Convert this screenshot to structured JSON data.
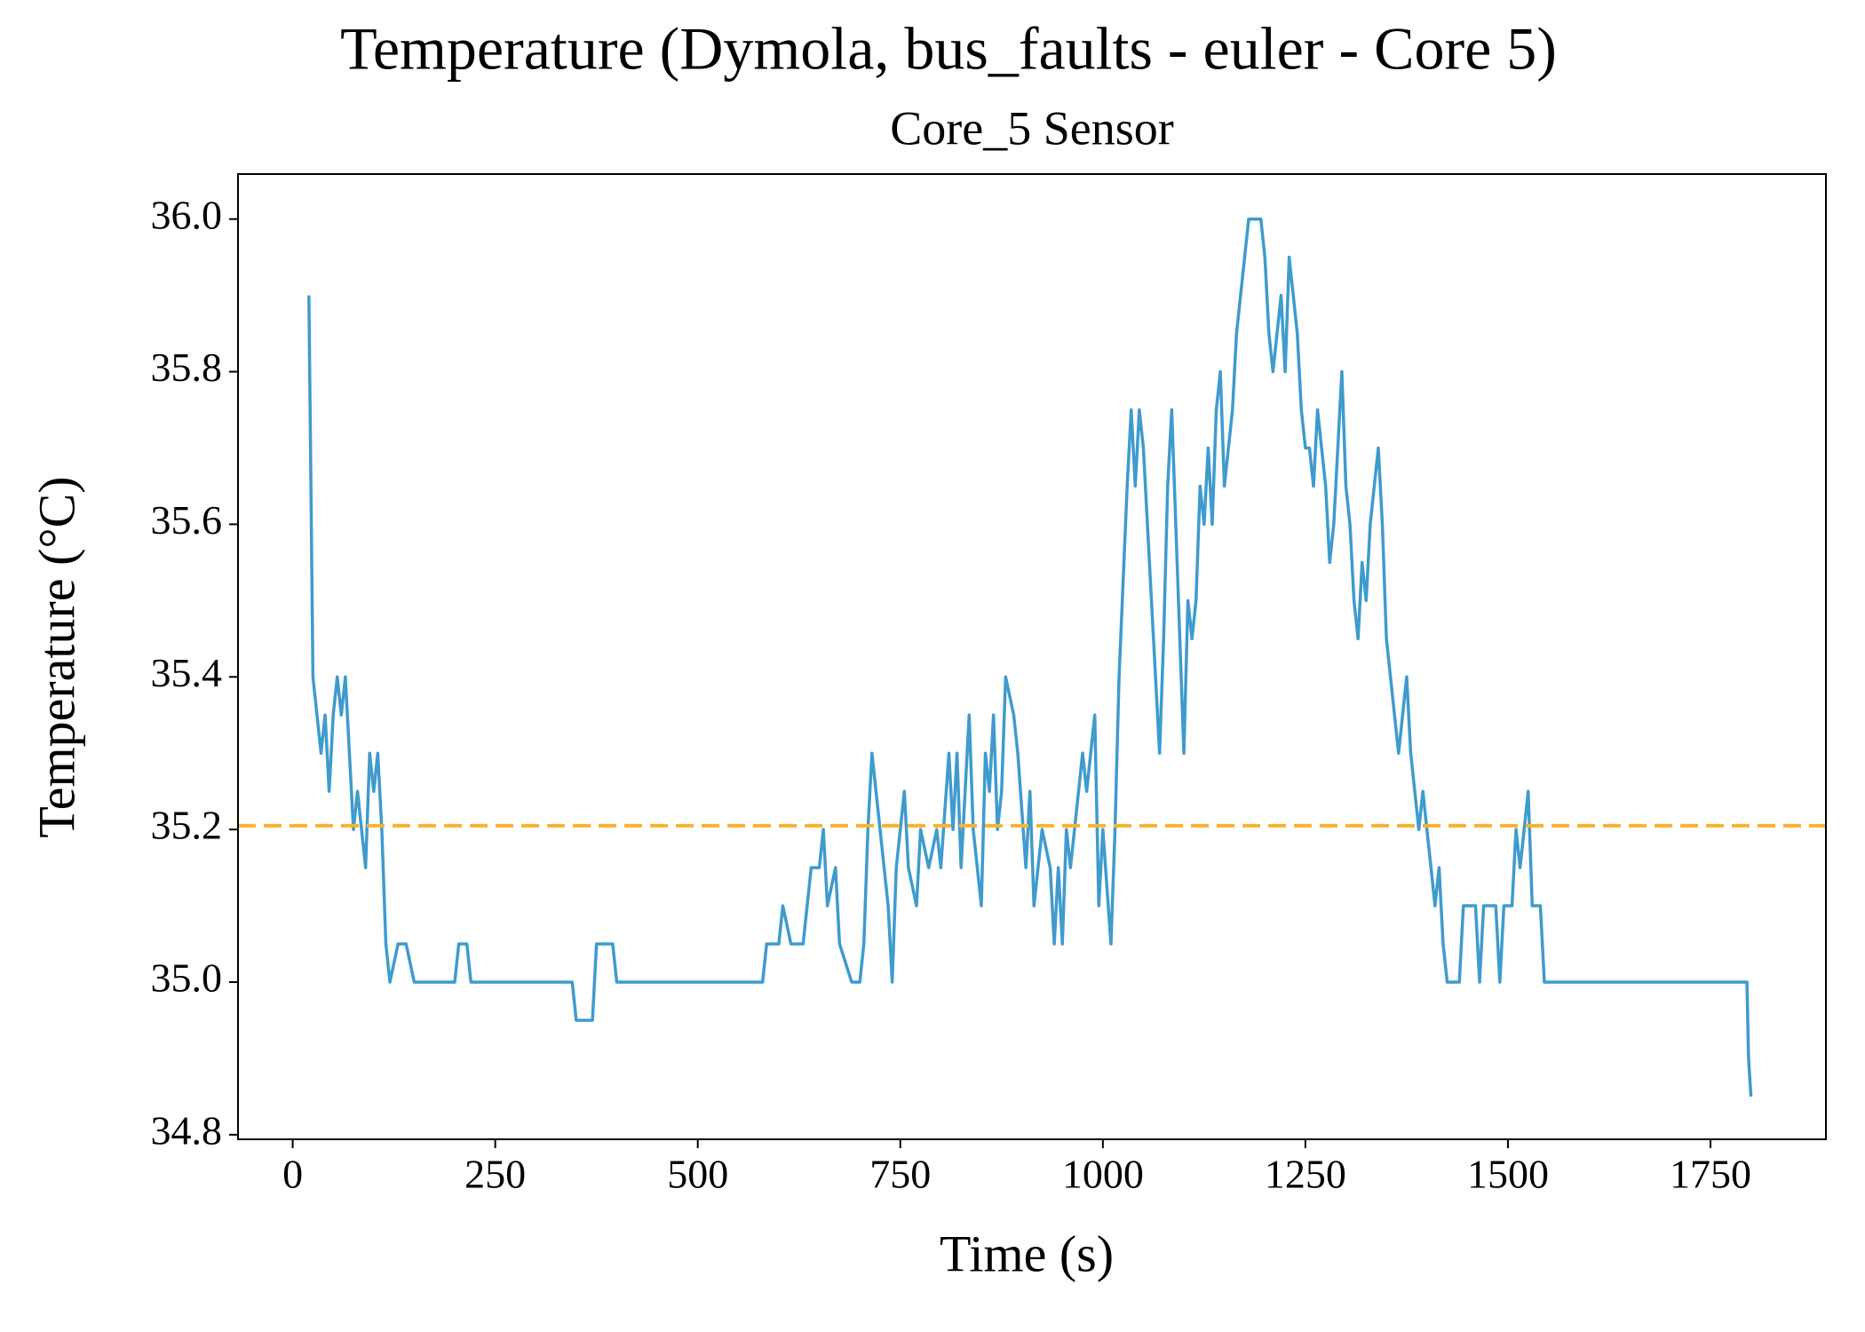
{
  "chart_data": {
    "type": "line",
    "title": "Temperature (Dymola, bus_faults - euler - Core 5)",
    "subtitle": "Core_5 Sensor",
    "x_label": "Time (s)",
    "y_label": "Temperature (°C)",
    "xlim": [
      -67.5,
      1892.5
    ],
    "ylim": [
      34.794,
      36.059
    ],
    "xticks": [
      0,
      250,
      500,
      750,
      1000,
      1250,
      1500,
      1750
    ],
    "yticks": [
      34.8,
      {
        "value": 35,
        "label": "35.0"
      },
      35.2,
      35.4,
      35.6,
      35.8,
      {
        "value": 36,
        "label": "36.0"
      }
    ],
    "grid": false,
    "reference_line": {
      "value": 35.205,
      "color": "#f9b233",
      "style": "dashed"
    },
    "series": [
      {
        "color": "#3f9bcd",
        "x": [
          20,
          25,
          30,
          35,
          40,
          45,
          50,
          55,
          60,
          65,
          70,
          75,
          80,
          85,
          90,
          95,
          100,
          105,
          110,
          115,
          120,
          130,
          140,
          150,
          200,
          205,
          215,
          220,
          345,
          350,
          370,
          375,
          395,
          400,
          580,
          585,
          600,
          605,
          615,
          630,
          640,
          650,
          655,
          660,
          670,
          675,
          690,
          700,
          705,
          710,
          715,
          720,
          725,
          735,
          740,
          745,
          755,
          760,
          770,
          775,
          785,
          795,
          800,
          810,
          815,
          820,
          825,
          835,
          840,
          850,
          855,
          860,
          865,
          870,
          875,
          880,
          890,
          895,
          905,
          910,
          915,
          925,
          935,
          940,
          945,
          950,
          955,
          960,
          965,
          975,
          980,
          990,
          995,
          1000,
          1010,
          1015,
          1020,
          1030,
          1035,
          1040,
          1045,
          1050,
          1055,
          1060,
          1065,
          1070,
          1075,
          1080,
          1085,
          1090,
          1095,
          1100,
          1105,
          1110,
          1115,
          1120,
          1125,
          1130,
          1135,
          1140,
          1145,
          1150,
          1155,
          1160,
          1165,
          1170,
          1175,
          1180,
          1195,
          1200,
          1205,
          1210,
          1215,
          1220,
          1225,
          1230,
          1240,
          1245,
          1250,
          1255,
          1260,
          1265,
          1270,
          1275,
          1280,
          1285,
          1290,
          1295,
          1300,
          1305,
          1310,
          1315,
          1320,
          1325,
          1330,
          1335,
          1340,
          1345,
          1350,
          1355,
          1360,
          1365,
          1370,
          1375,
          1380,
          1385,
          1390,
          1395,
          1400,
          1405,
          1410,
          1415,
          1420,
          1425,
          1440,
          1445,
          1460,
          1465,
          1470,
          1485,
          1490,
          1495,
          1505,
          1510,
          1515,
          1520,
          1525,
          1530,
          1540,
          1545,
          1795,
          1797,
          1800
        ],
        "values": [
          35.9,
          35.4,
          35.35,
          35.3,
          35.35,
          35.25,
          35.35,
          35.4,
          35.35,
          35.4,
          35.3,
          35.2,
          35.25,
          35.2,
          35.15,
          35.3,
          35.25,
          35.3,
          35.2,
          35.05,
          35.0,
          35.05,
          35.05,
          35.0,
          35.0,
          35.05,
          35.05,
          35.0,
          35.0,
          34.95,
          34.95,
          35.05,
          35.05,
          35.0,
          35.0,
          35.05,
          35.05,
          35.1,
          35.05,
          35.05,
          35.15,
          35.15,
          35.2,
          35.1,
          35.15,
          35.05,
          35.0,
          35.0,
          35.05,
          35.2,
          35.3,
          35.25,
          35.2,
          35.1,
          35.0,
          35.15,
          35.25,
          35.15,
          35.1,
          35.2,
          35.15,
          35.2,
          35.15,
          35.3,
          35.2,
          35.3,
          35.15,
          35.35,
          35.2,
          35.1,
          35.3,
          35.25,
          35.35,
          35.2,
          35.25,
          35.4,
          35.35,
          35.3,
          35.15,
          35.25,
          35.1,
          35.2,
          35.15,
          35.05,
          35.15,
          35.05,
          35.2,
          35.15,
          35.2,
          35.3,
          35.25,
          35.35,
          35.1,
          35.2,
          35.05,
          35.2,
          35.4,
          35.65,
          35.75,
          35.65,
          35.75,
          35.7,
          35.6,
          35.5,
          35.4,
          35.3,
          35.45,
          35.65,
          35.75,
          35.6,
          35.45,
          35.3,
          35.5,
          35.45,
          35.5,
          35.65,
          35.6,
          35.7,
          35.6,
          35.75,
          35.8,
          35.65,
          35.7,
          35.75,
          35.85,
          35.9,
          35.95,
          36.0,
          36.0,
          35.95,
          35.85,
          35.8,
          35.85,
          35.9,
          35.8,
          35.95,
          35.85,
          35.75,
          35.7,
          35.7,
          35.65,
          35.75,
          35.7,
          35.65,
          35.55,
          35.6,
          35.7,
          35.8,
          35.65,
          35.6,
          35.5,
          35.45,
          35.55,
          35.5,
          35.6,
          35.65,
          35.7,
          35.6,
          35.45,
          35.4,
          35.35,
          35.3,
          35.35,
          35.4,
          35.3,
          35.25,
          35.2,
          35.25,
          35.2,
          35.15,
          35.1,
          35.15,
          35.05,
          35.0,
          35.0,
          35.1,
          35.1,
          35.0,
          35.1,
          35.1,
          35.0,
          35.1,
          35.1,
          35.2,
          35.15,
          35.2,
          35.25,
          35.1,
          35.1,
          35.0,
          35.0,
          34.9,
          34.85
        ]
      }
    ]
  }
}
